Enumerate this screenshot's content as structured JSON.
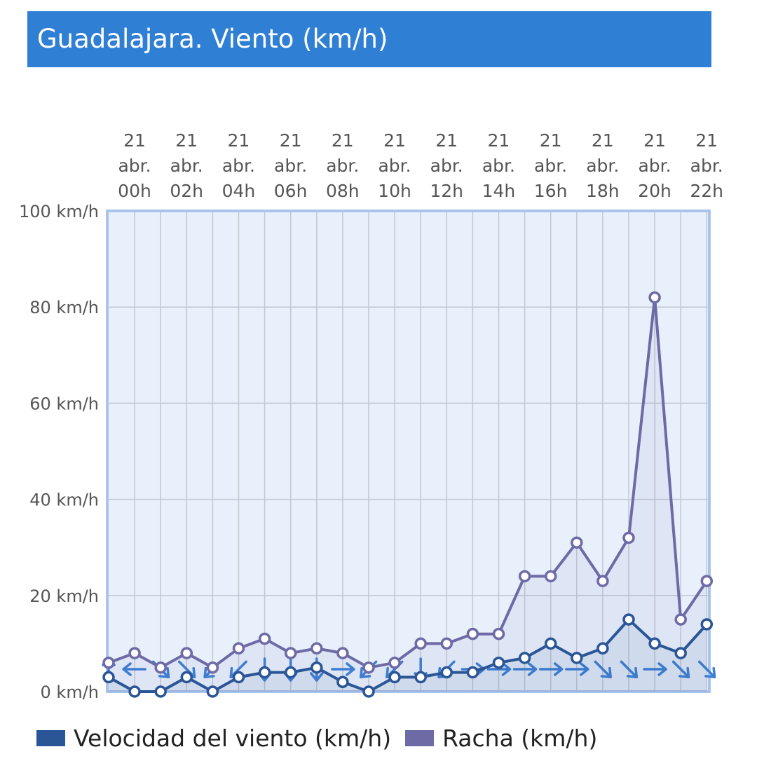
{
  "title": "Guadalajara. Viento (km/h)",
  "colors": {
    "header_bg": "#2f7fd4",
    "plot_bg": "#e8f0fb",
    "plot_border": "#a9c4ea",
    "velocidad": "#2a5596",
    "racha": "#6e6aa6",
    "direction_arrow": "#3a7fd5"
  },
  "chart_data": {
    "type": "line",
    "title": "Guadalajara. Viento (km/h)",
    "y_unit": "km/h",
    "ylim": [
      0,
      100
    ],
    "y_ticks": [
      "0 km/h",
      "20 km/h",
      "40 km/h",
      "60 km/h",
      "80 km/h",
      "100 km/h"
    ],
    "y_tick_values": [
      0,
      20,
      40,
      60,
      80,
      100
    ],
    "x_tick_labels": [
      [
        "21",
        "abr.",
        "00h"
      ],
      [
        "21",
        "abr.",
        "02h"
      ],
      [
        "21",
        "abr.",
        "04h"
      ],
      [
        "21",
        "abr.",
        "06h"
      ],
      [
        "21",
        "abr.",
        "08h"
      ],
      [
        "21",
        "abr.",
        "10h"
      ],
      [
        "21",
        "abr.",
        "12h"
      ],
      [
        "21",
        "abr.",
        "14h"
      ],
      [
        "21",
        "abr.",
        "16h"
      ],
      [
        "21",
        "abr.",
        "18h"
      ],
      [
        "21",
        "abr.",
        "20h"
      ],
      [
        "21",
        "abr.",
        "22h"
      ]
    ],
    "hours": [
      0,
      1,
      2,
      3,
      4,
      5,
      6,
      7,
      8,
      9,
      10,
      11,
      12,
      13,
      14,
      15,
      16,
      17,
      18,
      19,
      20,
      21,
      22,
      23
    ],
    "grid": true,
    "legend_position": "bottom-left",
    "series": [
      {
        "name": "Velocidad del viento (km/h)",
        "color": "#2a5596",
        "values": [
          3,
          0,
          0,
          3,
          0,
          3,
          4,
          4,
          5,
          2,
          0,
          3,
          3,
          4,
          4,
          6,
          7,
          10,
          7,
          9,
          15,
          10,
          8,
          14
        ]
      },
      {
        "name": "Racha (km/h)",
        "color": "#6e6aa6",
        "values": [
          6,
          8,
          5,
          8,
          5,
          9,
          11,
          8,
          9,
          8,
          5,
          6,
          10,
          10,
          12,
          12,
          24,
          24,
          31,
          23,
          32,
          82,
          15,
          23
        ]
      }
    ],
    "wind_direction_arrows_deg": [
      0,
      270,
      135,
      135,
      225,
      225,
      180,
      180,
      180,
      90,
      225,
      225,
      180,
      225,
      90,
      90,
      90,
      90,
      90,
      135,
      135,
      90,
      135,
      135
    ]
  },
  "legend": {
    "items": [
      {
        "label": "Velocidad del viento (km/h)",
        "color": "#2a5596"
      },
      {
        "label": "Racha (km/h)",
        "color": "#6e6aa6"
      }
    ]
  }
}
